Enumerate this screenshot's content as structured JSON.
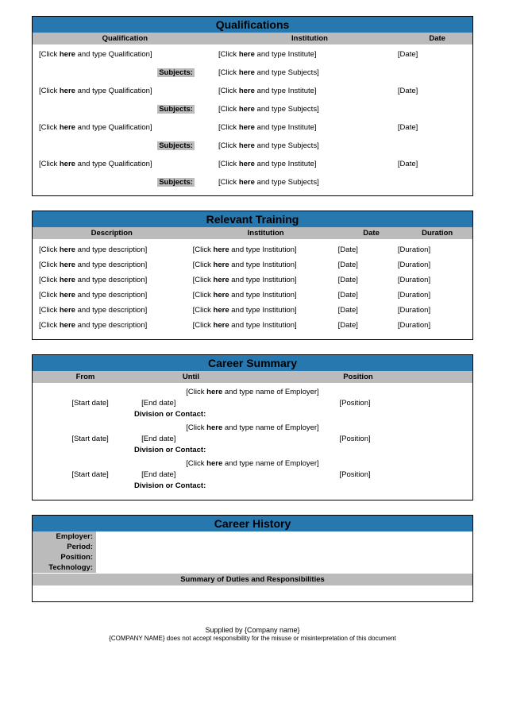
{
  "colors": {
    "section_title_bg": "#2878b0",
    "header_bg": "#bbbbbb",
    "border": "#000000",
    "text": "#000000"
  },
  "qualifications": {
    "title": "Qualifications",
    "headers": {
      "col1": "Qualification",
      "col2": "Institution",
      "col3": "Date"
    },
    "subjects_label": "Subjects:",
    "rows": [
      {
        "qual": "[Click here and type Qualification]",
        "inst": "[Click here and type Institute]",
        "date": "[Date]",
        "subj": "[Click here and type Subjects]"
      },
      {
        "qual": "[Click here and type Qualification]",
        "inst": "[Click here and type Institute]",
        "date": "[Date]",
        "subj": "[Click here and type Subjects]"
      },
      {
        "qual": "[Click here and type Qualification]",
        "inst": "[Click here and type Institute]",
        "date": "[Date]",
        "subj": "[Click here and type Subjects]"
      },
      {
        "qual": "[Click here and type Qualification]",
        "inst": "[Click here and type Institute]",
        "date": "[Date]",
        "subj": "[Click here and type Subjects]"
      }
    ]
  },
  "training": {
    "title": "Relevant Training",
    "headers": {
      "col1": "Description",
      "col2": "Institution",
      "col3": "Date",
      "col4": "Duration"
    },
    "rows": [
      {
        "desc": "[Click here and type description]",
        "inst": "[Click here and type Institution]",
        "date": "[Date]",
        "dur": "[Duration]"
      },
      {
        "desc": "[Click here and type description]",
        "inst": "[Click here and type Institution]",
        "date": "[Date]",
        "dur": "[Duration]"
      },
      {
        "desc": "[Click here and type description]",
        "inst": "[Click here and type Institution]",
        "date": "[Date]",
        "dur": "[Duration]"
      },
      {
        "desc": "[Click here and type description]",
        "inst": "[Click here and type Institution]",
        "date": "[Date]",
        "dur": "[Duration]"
      },
      {
        "desc": "[Click here and type description]",
        "inst": "[Click here and type Institution]",
        "date": "[Date]",
        "dur": "[Duration]"
      },
      {
        "desc": "[Click here and type description]",
        "inst": "[Click here and type Institution]",
        "date": "[Date]",
        "dur": "[Duration]"
      }
    ]
  },
  "career_summary": {
    "title": "Career Summary",
    "headers": {
      "col1": "From",
      "col2": "Until",
      "col3": "Position"
    },
    "employer_placeholder": "[Click here and type name of Employer]",
    "division_label": "Division or Contact:",
    "rows": [
      {
        "from": "[Start date]",
        "until": "[End date]",
        "pos": "[Position]"
      },
      {
        "from": "[Start date]",
        "until": "[End date]",
        "pos": "[Position]"
      },
      {
        "from": "[Start date]",
        "until": "[End date]",
        "pos": "[Position]"
      }
    ]
  },
  "career_history": {
    "title": "Career History",
    "labels": {
      "employer": "Employer:",
      "period": "Period:",
      "position": "Position:",
      "technology": "Technology:"
    },
    "summary_header": "Summary of Duties and Responsibilities"
  },
  "footer": {
    "line1": "Supplied by {Company name}",
    "line2": "{COMPANY NAME} does not accept responsibility for the misuse or misinterpretation of this document"
  },
  "placeholder_bold": "here"
}
